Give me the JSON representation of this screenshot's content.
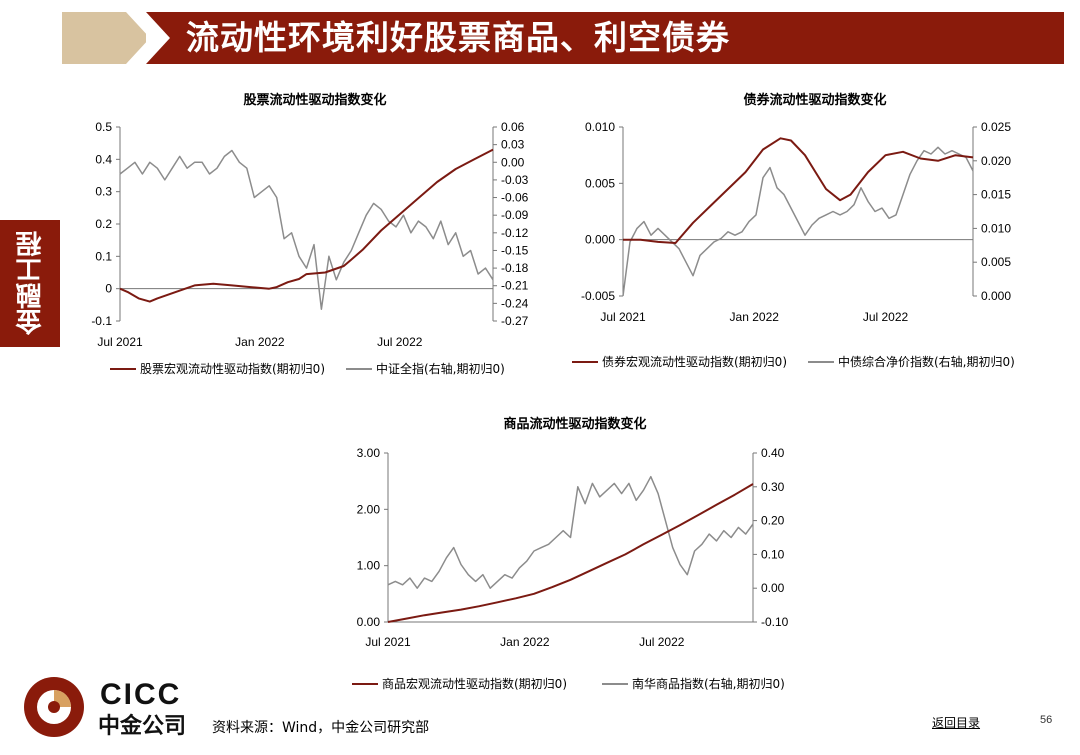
{
  "header": {
    "title": "流动性环境利好股票商品、利空债券"
  },
  "side_tab": {
    "label": "金融工程"
  },
  "colors": {
    "brand_red": "#8a1b0b",
    "header_tan": "#d8c3a0",
    "series_red": "#7b1a12",
    "series_gray": "#8c8c8c"
  },
  "footer": {
    "source": "资料来源：Wind，中金公司研究部",
    "back_link": "返回目录",
    "page_number": "56"
  },
  "logo": {
    "latin": "CICC",
    "cjk": "中金公司"
  },
  "chart_data": [
    {
      "type": "line",
      "title": "股票流动性驱动指数变化",
      "x_ticks": [
        "Jul 2021",
        "Jan 2022",
        "Jul 2022"
      ],
      "x_range": [
        "2021-07",
        "2022-11"
      ],
      "y_left": {
        "range": [
          -0.1,
          0.5
        ],
        "ticks": [
          "0.5",
          "0.4",
          "0.3",
          "0.2",
          "0.1",
          "0",
          "-0.1"
        ]
      },
      "y_right": {
        "range": [
          -0.27,
          0.06
        ],
        "ticks": [
          "0.06",
          "0.03",
          "0.00",
          "-0.03",
          "-0.06",
          "-0.09",
          "-0.12",
          "-0.15",
          "-0.18",
          "-0.21",
          "-0.24",
          "-0.27"
        ]
      },
      "zero_line": "left",
      "series": [
        {
          "name": "股票宏观流动性驱动指数(期初归0)",
          "axis": "left",
          "color": "#7b1a12",
          "x": [
            0,
            0.02,
            0.05,
            0.08,
            0.1,
            0.15,
            0.2,
            0.25,
            0.3,
            0.35,
            0.4,
            0.42,
            0.45,
            0.48,
            0.5,
            0.55,
            0.6,
            0.62,
            0.65,
            0.7,
            0.75,
            0.8,
            0.85,
            0.9,
            0.95,
            1.0
          ],
          "y": [
            0,
            -0.01,
            -0.03,
            -0.04,
            -0.03,
            -0.01,
            0.01,
            0.015,
            0.01,
            0.005,
            0,
            0.005,
            0.02,
            0.03,
            0.045,
            0.05,
            0.07,
            0.09,
            0.12,
            0.18,
            0.23,
            0.28,
            0.33,
            0.37,
            0.4,
            0.43
          ]
        },
        {
          "name": "中证全指(右轴,期初归0)",
          "axis": "right",
          "color": "#8c8c8c",
          "x": [
            0,
            0.02,
            0.04,
            0.06,
            0.08,
            0.1,
            0.12,
            0.14,
            0.16,
            0.18,
            0.2,
            0.22,
            0.24,
            0.26,
            0.28,
            0.3,
            0.32,
            0.34,
            0.36,
            0.38,
            0.4,
            0.42,
            0.44,
            0.46,
            0.48,
            0.5,
            0.52,
            0.54,
            0.56,
            0.58,
            0.6,
            0.62,
            0.64,
            0.66,
            0.68,
            0.7,
            0.72,
            0.74,
            0.76,
            0.78,
            0.8,
            0.82,
            0.84,
            0.86,
            0.88,
            0.9,
            0.92,
            0.94,
            0.96,
            0.98,
            1.0
          ],
          "y": [
            -0.02,
            -0.01,
            0.0,
            -0.02,
            0.0,
            -0.01,
            -0.03,
            -0.01,
            0.01,
            -0.01,
            0.0,
            0.0,
            -0.02,
            -0.01,
            0.01,
            0.02,
            0.0,
            -0.01,
            -0.06,
            -0.05,
            -0.04,
            -0.06,
            -0.13,
            -0.12,
            -0.16,
            -0.18,
            -0.14,
            -0.25,
            -0.16,
            -0.2,
            -0.17,
            -0.15,
            -0.12,
            -0.09,
            -0.07,
            -0.08,
            -0.1,
            -0.11,
            -0.09,
            -0.12,
            -0.1,
            -0.11,
            -0.13,
            -0.1,
            -0.14,
            -0.12,
            -0.16,
            -0.15,
            -0.19,
            -0.18,
            -0.2
          ]
        }
      ]
    },
    {
      "type": "line",
      "title": "债券流动性驱动指数变化",
      "x_ticks": [
        "Jul 2021",
        "Jan 2022",
        "Jul 2022"
      ],
      "x_range": [
        "2021-07",
        "2022-11"
      ],
      "y_left": {
        "range": [
          -0.005,
          0.01
        ],
        "ticks": [
          "0.010",
          "0.005",
          "0.000",
          "-0.005"
        ]
      },
      "y_right": {
        "range": [
          0.0,
          0.025
        ],
        "ticks": [
          "0.025",
          "0.020",
          "0.015",
          "0.010",
          "0.005",
          "0.000"
        ]
      },
      "zero_line": "left",
      "series": [
        {
          "name": "债券宏观流动性驱动指数(期初归0)",
          "axis": "left",
          "color": "#7b1a12",
          "x": [
            0,
            0.05,
            0.1,
            0.15,
            0.2,
            0.25,
            0.3,
            0.35,
            0.4,
            0.45,
            0.48,
            0.52,
            0.55,
            0.58,
            0.62,
            0.65,
            0.7,
            0.75,
            0.8,
            0.85,
            0.9,
            0.95,
            1.0
          ],
          "y": [
            0,
            0.0,
            -0.0002,
            -0.0003,
            0.0015,
            0.003,
            0.0045,
            0.006,
            0.008,
            0.009,
            0.0088,
            0.0075,
            0.006,
            0.0045,
            0.0035,
            0.004,
            0.006,
            0.0075,
            0.0078,
            0.0072,
            0.007,
            0.0075,
            0.0073
          ]
        },
        {
          "name": "中债综合净价指数(右轴,期初归0)",
          "axis": "right",
          "color": "#8c8c8c",
          "x": [
            0,
            0.02,
            0.04,
            0.06,
            0.08,
            0.1,
            0.12,
            0.14,
            0.16,
            0.18,
            0.2,
            0.22,
            0.24,
            0.26,
            0.28,
            0.3,
            0.32,
            0.34,
            0.36,
            0.38,
            0.4,
            0.42,
            0.44,
            0.46,
            0.48,
            0.5,
            0.52,
            0.54,
            0.56,
            0.58,
            0.6,
            0.62,
            0.64,
            0.66,
            0.68,
            0.7,
            0.72,
            0.74,
            0.76,
            0.78,
            0.8,
            0.82,
            0.84,
            0.86,
            0.88,
            0.9,
            0.92,
            0.94,
            0.96,
            0.98,
            1.0
          ],
          "y": [
            0.0,
            0.008,
            0.01,
            0.011,
            0.009,
            0.01,
            0.009,
            0.008,
            0.007,
            0.005,
            0.003,
            0.006,
            0.007,
            0.008,
            0.0085,
            0.0095,
            0.009,
            0.0095,
            0.011,
            0.012,
            0.0175,
            0.019,
            0.016,
            0.015,
            0.013,
            0.011,
            0.009,
            0.0105,
            0.0115,
            0.012,
            0.0125,
            0.012,
            0.0125,
            0.0135,
            0.016,
            0.014,
            0.0125,
            0.013,
            0.0115,
            0.012,
            0.015,
            0.018,
            0.02,
            0.0215,
            0.021,
            0.022,
            0.021,
            0.0215,
            0.021,
            0.0205,
            0.0185
          ]
        }
      ]
    },
    {
      "type": "line",
      "title": "商品流动性驱动指数变化",
      "x_ticks": [
        "Jul 2021",
        "Jan 2022",
        "Jul 2022"
      ],
      "x_range": [
        "2021-07",
        "2022-11"
      ],
      "y_left": {
        "range": [
          0.0,
          3.0
        ],
        "ticks": [
          "3.00",
          "2.00",
          "1.00",
          "0.00"
        ]
      },
      "y_right": {
        "range": [
          -0.1,
          0.4
        ],
        "ticks": [
          "0.40",
          "0.30",
          "0.20",
          "0.10",
          "0.00",
          "-0.10"
        ]
      },
      "zero_line": "none",
      "series": [
        {
          "name": "商品宏观流动性驱动指数(期初归0)",
          "axis": "left",
          "color": "#7b1a12",
          "x": [
            0,
            0.05,
            0.1,
            0.15,
            0.2,
            0.25,
            0.3,
            0.35,
            0.4,
            0.45,
            0.5,
            0.55,
            0.6,
            0.65,
            0.7,
            0.75,
            0.8,
            0.85,
            0.9,
            0.95,
            1.0
          ],
          "y": [
            0.0,
            0.06,
            0.12,
            0.17,
            0.22,
            0.28,
            0.35,
            0.42,
            0.5,
            0.62,
            0.75,
            0.9,
            1.05,
            1.2,
            1.38,
            1.55,
            1.72,
            1.9,
            2.08,
            2.26,
            2.45
          ]
        },
        {
          "name": "南华商品指数(右轴,期初归0)",
          "axis": "right",
          "color": "#8c8c8c",
          "x": [
            0,
            0.02,
            0.04,
            0.06,
            0.08,
            0.1,
            0.12,
            0.14,
            0.16,
            0.18,
            0.2,
            0.22,
            0.24,
            0.26,
            0.28,
            0.3,
            0.32,
            0.34,
            0.36,
            0.38,
            0.4,
            0.42,
            0.44,
            0.46,
            0.48,
            0.5,
            0.52,
            0.54,
            0.56,
            0.58,
            0.6,
            0.62,
            0.64,
            0.66,
            0.68,
            0.7,
            0.72,
            0.74,
            0.76,
            0.78,
            0.8,
            0.82,
            0.84,
            0.86,
            0.88,
            0.9,
            0.92,
            0.94,
            0.96,
            0.98,
            1.0
          ],
          "y": [
            0.01,
            0.02,
            0.01,
            0.03,
            0.0,
            0.03,
            0.02,
            0.05,
            0.09,
            0.12,
            0.07,
            0.04,
            0.02,
            0.04,
            0.0,
            0.02,
            0.04,
            0.03,
            0.06,
            0.08,
            0.11,
            0.12,
            0.13,
            0.15,
            0.17,
            0.15,
            0.3,
            0.25,
            0.31,
            0.27,
            0.29,
            0.31,
            0.28,
            0.31,
            0.26,
            0.29,
            0.33,
            0.28,
            0.2,
            0.12,
            0.07,
            0.04,
            0.11,
            0.13,
            0.16,
            0.14,
            0.17,
            0.15,
            0.18,
            0.16,
            0.19
          ]
        }
      ]
    }
  ]
}
